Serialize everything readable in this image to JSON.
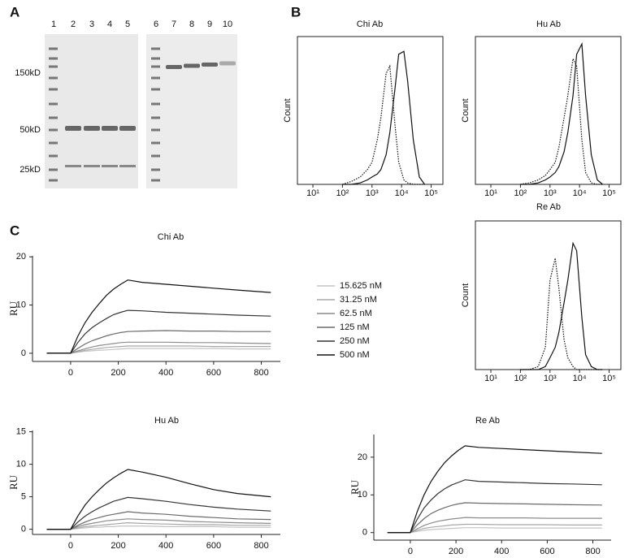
{
  "panel_labels": [
    "A",
    "B",
    "C"
  ],
  "gel": {
    "lanes": [
      "1",
      "2",
      "3",
      "4",
      "5",
      "6",
      "7",
      "8",
      "9",
      "10"
    ],
    "markers": [
      "150kD",
      "50kD",
      "25kD"
    ]
  },
  "chart_data": [
    {
      "type": "line",
      "title": "Chi Ab",
      "y_label": "Count",
      "frame": "box",
      "x_scale": "log",
      "x": [
        100,
        200,
        400,
        700,
        1000,
        1500,
        2000,
        3000,
        4000,
        6000,
        8000,
        12000,
        16000,
        25000,
        40000,
        60000
      ],
      "series": [
        {
          "color": "#111111",
          "style": "dotted",
          "values": [
            0,
            2,
            5,
            10,
            15,
            30,
            45,
            75,
            80,
            40,
            15,
            3,
            1,
            0,
            0,
            0
          ]
        },
        {
          "color": "#111111",
          "style": "solid",
          "values": [
            0,
            0,
            1,
            3,
            5,
            7,
            10,
            20,
            35,
            65,
            88,
            90,
            70,
            30,
            5,
            0
          ]
        }
      ],
      "xlim": [
        3,
        250000
      ],
      "ylim": [
        0,
        100
      ],
      "xticks": [
        {
          "value": 10,
          "label": "10¹"
        },
        {
          "value": 100,
          "label": "10²"
        },
        {
          "value": 1000,
          "label": "10³"
        },
        {
          "value": 10000,
          "label": "10⁴"
        },
        {
          "value": 100000,
          "label": "10⁵"
        }
      ]
    },
    {
      "type": "line",
      "title": "Hu Ab",
      "y_label": "Count",
      "frame": "box",
      "x_scale": "log",
      "x": [
        100,
        200,
        400,
        700,
        1000,
        1500,
        2000,
        3000,
        4000,
        6000,
        8000,
        12000,
        16000,
        25000,
        40000,
        60000
      ],
      "series": [
        {
          "color": "#111111",
          "style": "dotted",
          "values": [
            0,
            1,
            3,
            6,
            10,
            15,
            25,
            45,
            60,
            85,
            80,
            30,
            8,
            1,
            0,
            0
          ]
        },
        {
          "color": "#111111",
          "style": "solid",
          "values": [
            0,
            0,
            1,
            3,
            5,
            8,
            12,
            22,
            35,
            60,
            88,
            95,
            60,
            20,
            3,
            0
          ]
        }
      ],
      "xlim": [
        3,
        250000
      ],
      "ylim": [
        0,
        100
      ],
      "xticks": [
        {
          "value": 10,
          "label": "10¹"
        },
        {
          "value": 100,
          "label": "10²"
        },
        {
          "value": 1000,
          "label": "10³"
        },
        {
          "value": 10000,
          "label": "10⁴"
        },
        {
          "value": 100000,
          "label": "10⁵"
        }
      ]
    },
    {
      "type": "line",
      "title": "Re Ab",
      "y_label": "Count",
      "frame": "box",
      "x_scale": "log",
      "x": [
        100,
        200,
        400,
        700,
        1000,
        1500,
        2000,
        3000,
        4000,
        6000,
        8000,
        12000,
        16000,
        25000,
        40000,
        60000
      ],
      "series": [
        {
          "color": "#111111",
          "style": "dotted",
          "values": [
            0,
            0,
            2,
            15,
            60,
            75,
            55,
            20,
            8,
            2,
            0,
            0,
            0,
            0,
            0,
            0
          ]
        },
        {
          "color": "#111111",
          "style": "solid",
          "values": [
            0,
            0,
            0,
            2,
            8,
            15,
            25,
            45,
            60,
            85,
            80,
            35,
            10,
            2,
            0,
            0
          ]
        }
      ],
      "xlim": [
        3,
        250000
      ],
      "ylim": [
        0,
        100
      ],
      "xticks": [
        {
          "value": 10,
          "label": "10¹"
        },
        {
          "value": 100,
          "label": "10²"
        },
        {
          "value": 1000,
          "label": "10³"
        },
        {
          "value": 10000,
          "label": "10⁴"
        },
        {
          "value": 100000,
          "label": "10⁵"
        }
      ]
    },
    {
      "type": "line",
      "title": "Chi Ab",
      "y_label": "RU",
      "frame": "axes",
      "legend": "right",
      "x": [
        -100,
        0,
        30,
        60,
        90,
        120,
        150,
        180,
        210,
        240,
        300,
        400,
        500,
        600,
        700,
        840
      ],
      "series": [
        {
          "name": "15.625 nM",
          "color": "#c4c4c4",
          "values": [
            0,
            0,
            0.2,
            0.4,
            0.5,
            0.6,
            0.7,
            0.8,
            0.9,
            1,
            1,
            1,
            1,
            1,
            0.9,
            0.9
          ]
        },
        {
          "name": "31.25 nM",
          "color": "#a8a8a8",
          "values": [
            0,
            0,
            0.3,
            0.6,
            0.8,
            1,
            1.2,
            1.3,
            1.4,
            1.5,
            1.5,
            1.5,
            1.5,
            1.4,
            1.4,
            1.4
          ]
        },
        {
          "name": "62.5 nM",
          "color": "#8c8c8c",
          "values": [
            0,
            0,
            0.5,
            0.9,
            1.3,
            1.6,
            1.8,
            2,
            2.2,
            2.3,
            2.3,
            2.3,
            2.2,
            2.2,
            2.1,
            2
          ]
        },
        {
          "name": "125 nM",
          "color": "#6a6a6a",
          "values": [
            0,
            0,
            1,
            1.9,
            2.6,
            3.1,
            3.6,
            4,
            4.3,
            4.5,
            4.6,
            4.7,
            4.6,
            4.6,
            4.5,
            4.5
          ]
        },
        {
          "name": "250 nM",
          "color": "#333333",
          "values": [
            0,
            0,
            2.2,
            4,
            5.3,
            6.3,
            7.2,
            8,
            8.5,
            8.9,
            8.8,
            8.5,
            8.3,
            8.1,
            7.9,
            7.7
          ]
        },
        {
          "name": "500 nM",
          "color": "#111111",
          "values": [
            0,
            0,
            3.5,
            6.3,
            8.5,
            10.3,
            12,
            13.3,
            14.3,
            15.2,
            14.7,
            14.3,
            13.9,
            13.5,
            13.1,
            12.6
          ]
        }
      ],
      "xlim": [
        -160,
        880
      ],
      "ylim": [
        -1.7,
        20.2
      ],
      "xticks": [
        0,
        200,
        400,
        600,
        800
      ],
      "yticks": [
        0,
        10,
        20
      ]
    },
    {
      "type": "line",
      "title": "Hu Ab",
      "y_label": "RU",
      "frame": "axes",
      "x": [
        -100,
        0,
        30,
        60,
        90,
        120,
        150,
        180,
        210,
        240,
        300,
        400,
        500,
        600,
        700,
        840
      ],
      "series": [
        {
          "color": "#c4c4c4",
          "values": [
            0,
            0,
            0.1,
            0.2,
            0.3,
            0.3,
            0.4,
            0.4,
            0.5,
            0.5,
            0.5,
            0.4,
            0.4,
            0.4,
            0.3,
            0.3
          ]
        },
        {
          "color": "#a8a8a8",
          "values": [
            0,
            0,
            0.2,
            0.4,
            0.5,
            0.6,
            0.7,
            0.8,
            0.9,
            1,
            0.9,
            0.8,
            0.7,
            0.7,
            0.6,
            0.6
          ]
        },
        {
          "color": "#8c8c8c",
          "values": [
            0,
            0,
            0.4,
            0.7,
            0.9,
            1.1,
            1.3,
            1.4,
            1.5,
            1.6,
            1.5,
            1.4,
            1.2,
            1.1,
            1,
            0.9
          ]
        },
        {
          "color": "#6a6a6a",
          "values": [
            0,
            0,
            0.6,
            1.1,
            1.5,
            1.8,
            2.1,
            2.3,
            2.5,
            2.7,
            2.5,
            2.3,
            2,
            1.8,
            1.6,
            1.5
          ]
        },
        {
          "color": "#333333",
          "values": [
            0,
            0,
            1.1,
            2,
            2.7,
            3.3,
            3.8,
            4.3,
            4.6,
            4.9,
            4.7,
            4.3,
            3.8,
            3.4,
            3.1,
            2.8
          ]
        },
        {
          "color": "#111111",
          "values": [
            0,
            0,
            2,
            3.7,
            5,
            6.1,
            7.1,
            7.9,
            8.6,
            9.2,
            8.8,
            8,
            7,
            6.1,
            5.5,
            5
          ]
        }
      ],
      "xlim": [
        -160,
        880
      ],
      "ylim": [
        -0.8,
        15.2
      ],
      "xticks": [
        0,
        200,
        400,
        600,
        800
      ],
      "yticks": [
        0,
        5,
        10,
        15
      ]
    },
    {
      "type": "line",
      "title": "Re Ab",
      "y_label": "RU",
      "frame": "axes",
      "x": [
        -100,
        0,
        30,
        60,
        90,
        120,
        150,
        180,
        210,
        240,
        300,
        400,
        500,
        600,
        700,
        840
      ],
      "series": [
        {
          "color": "#c4c4c4",
          "values": [
            0,
            0,
            0.3,
            0.6,
            0.8,
            0.9,
            1,
            1.1,
            1.2,
            1.3,
            1.3,
            1.2,
            1.2,
            1.2,
            1.2,
            1.2
          ]
        },
        {
          "color": "#a8a8a8",
          "values": [
            0,
            0,
            0.6,
            1.1,
            1.4,
            1.6,
            1.8,
            2,
            2.1,
            2.2,
            2.2,
            2.1,
            2.1,
            2.1,
            2,
            2
          ]
        },
        {
          "color": "#8c8c8c",
          "values": [
            0,
            0,
            1,
            1.9,
            2.5,
            3,
            3.3,
            3.6,
            3.8,
            4,
            3.9,
            3.9,
            3.9,
            3.8,
            3.8,
            3.8
          ]
        },
        {
          "color": "#6a6a6a",
          "values": [
            0,
            0,
            2,
            3.7,
            5,
            5.9,
            6.6,
            7.2,
            7.6,
            7.9,
            7.8,
            7.7,
            7.6,
            7.5,
            7.4,
            7.3
          ]
        },
        {
          "color": "#333333",
          "values": [
            0,
            0,
            3.5,
            6.5,
            8.6,
            10.3,
            11.6,
            12.6,
            13.3,
            14,
            13.6,
            13.4,
            13.2,
            13,
            12.9,
            12.7
          ]
        },
        {
          "color": "#111111",
          "values": [
            0,
            0,
            5.5,
            10,
            13.5,
            16.2,
            18.5,
            20.3,
            21.8,
            23,
            22.6,
            22.3,
            22,
            21.7,
            21.4,
            21
          ]
        }
      ],
      "xlim": [
        -160,
        880
      ],
      "ylim": [
        -2,
        26
      ],
      "xticks": [
        0,
        200,
        400,
        600,
        800
      ],
      "yticks": [
        0,
        10,
        20
      ]
    }
  ]
}
